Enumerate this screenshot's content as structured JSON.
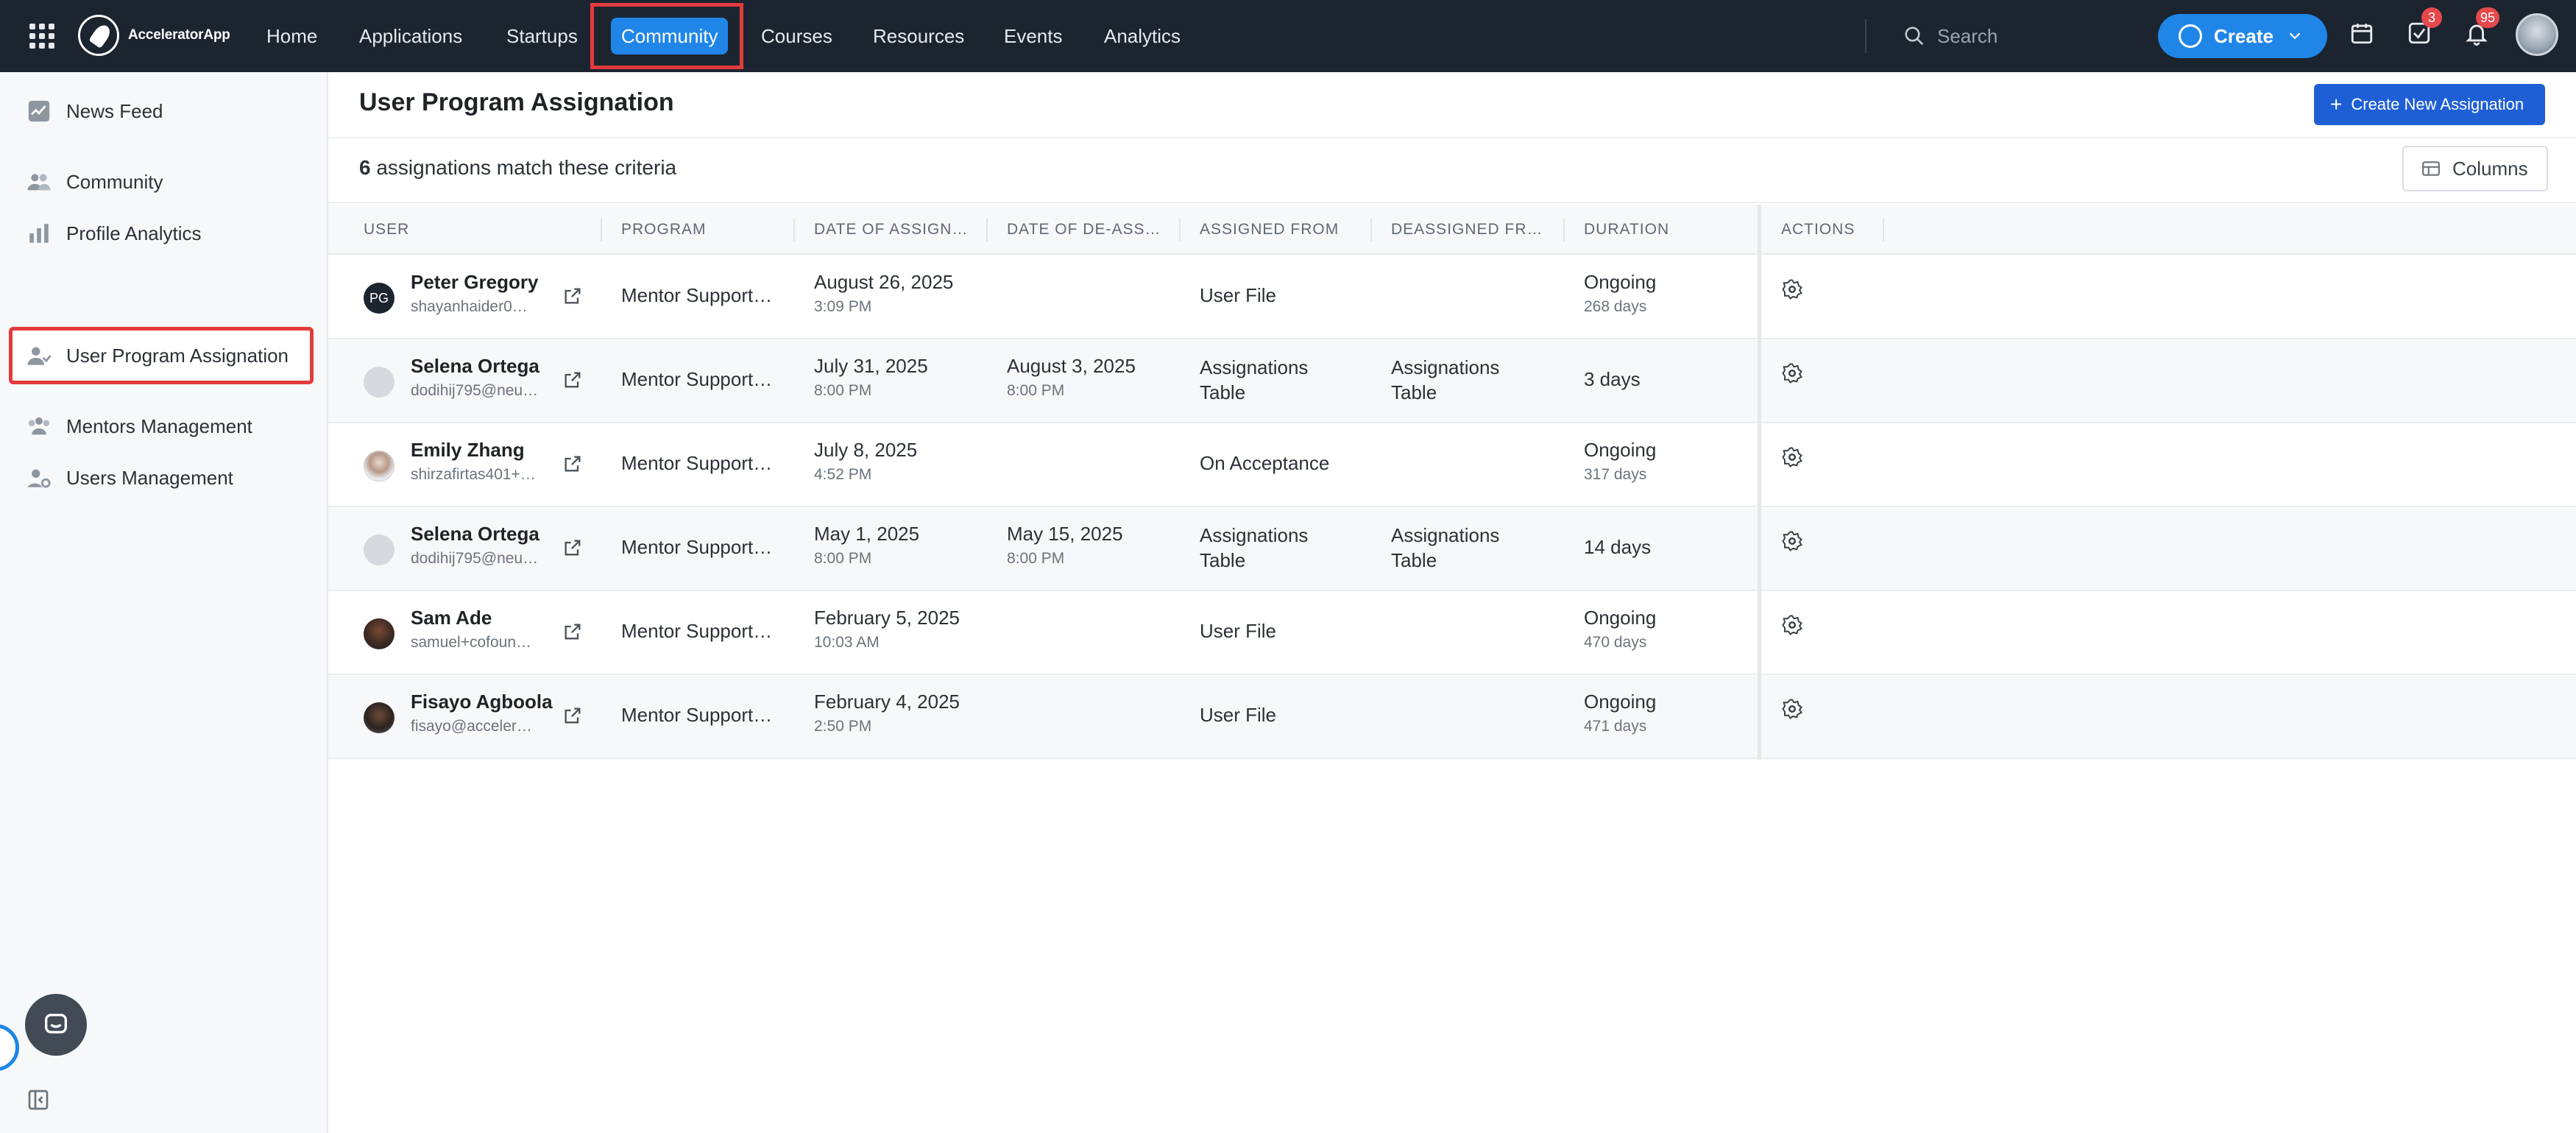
{
  "app": {
    "name": "AcceleratorApp"
  },
  "nav": {
    "items": [
      {
        "label": "Home"
      },
      {
        "label": "Applications"
      },
      {
        "label": "Startups"
      },
      {
        "label": "Community"
      },
      {
        "label": "Courses"
      },
      {
        "label": "Resources"
      },
      {
        "label": "Events"
      },
      {
        "label": "Analytics"
      }
    ],
    "active": "Community",
    "search_placeholder": "Search",
    "create_label": "Create",
    "tasks_badge": "3",
    "notifications_badge": "95"
  },
  "sidebar": {
    "items": [
      {
        "label": "News Feed",
        "icon": "chart-icon"
      },
      {
        "label": "Community",
        "icon": "people-icon"
      },
      {
        "label": "Profile Analytics",
        "icon": "bar-chart-icon"
      },
      {
        "label": "User Program Assignation",
        "icon": "user-assign-icon"
      },
      {
        "label": "Mentors Management",
        "icon": "group-icon"
      },
      {
        "label": "Users Management",
        "icon": "user-gear-icon"
      }
    ],
    "active": "User Program Assignation"
  },
  "page": {
    "title": "User Program Assignation",
    "create_button": "Create New Assignation",
    "count_number": "6",
    "count_text": "assignations match these criteria",
    "columns_button": "Columns"
  },
  "table": {
    "headers": [
      "USER",
      "PROGRAM",
      "DATE OF ASSIGN…",
      "DATE OF DE-ASS…",
      "ASSIGNED FROM",
      "DEASSIGNED FR…",
      "DURATION",
      "ACTIONS"
    ],
    "rows": [
      {
        "name": "Peter Gregory",
        "email": "shayanhaider0…",
        "initials": "PG",
        "program": "Mentor Support…",
        "assign_date": "August 26, 2025",
        "assign_time": "3:09 PM",
        "deassign_date": "",
        "deassign_time": "",
        "assigned_from_1": "User File",
        "assigned_from_2": "",
        "deassigned_from_1": "",
        "deassigned_from_2": "",
        "duration": "Ongoing",
        "duration_sub": "268 days"
      },
      {
        "name": "Selena Ortega",
        "email": "dodihij795@neu…",
        "initials": "",
        "program": "Mentor Support…",
        "assign_date": "July 31, 2025",
        "assign_time": "8:00 PM",
        "deassign_date": "August 3, 2025",
        "deassign_time": "8:00 PM",
        "assigned_from_1": "Assignations",
        "assigned_from_2": "Table",
        "deassigned_from_1": "Assignations",
        "deassigned_from_2": "Table",
        "duration": "3 days",
        "duration_sub": ""
      },
      {
        "name": "Emily Zhang",
        "email": "shirzafirtas401+…",
        "initials": "",
        "program": "Mentor Support…",
        "assign_date": "July 8, 2025",
        "assign_time": "4:52 PM",
        "deassign_date": "",
        "deassign_time": "",
        "assigned_from_1": "On Acceptance",
        "assigned_from_2": "",
        "deassigned_from_1": "",
        "deassigned_from_2": "",
        "duration": "Ongoing",
        "duration_sub": "317 days"
      },
      {
        "name": "Selena Ortega",
        "email": "dodihij795@neu…",
        "initials": "",
        "program": "Mentor Support…",
        "assign_date": "May 1, 2025",
        "assign_time": "8:00 PM",
        "deassign_date": "May 15, 2025",
        "deassign_time": "8:00 PM",
        "assigned_from_1": "Assignations",
        "assigned_from_2": "Table",
        "deassigned_from_1": "Assignations",
        "deassigned_from_2": "Table",
        "duration": "14 days",
        "duration_sub": ""
      },
      {
        "name": "Sam Ade",
        "email": "samuel+cofoun…",
        "initials": "",
        "program": "Mentor Support…",
        "assign_date": "February 5, 2025",
        "assign_time": "10:03 AM",
        "deassign_date": "",
        "deassign_time": "",
        "assigned_from_1": "User File",
        "assigned_from_2": "",
        "deassigned_from_1": "",
        "deassigned_from_2": "",
        "duration": "Ongoing",
        "duration_sub": "470 days"
      },
      {
        "name": "Fisayo Agboola",
        "email": "fisayo@acceler…",
        "initials": "",
        "program": "Mentor Support…",
        "assign_date": "February 4, 2025",
        "assign_time": "2:50 PM",
        "deassign_date": "",
        "deassign_time": "",
        "assigned_from_1": "User File",
        "assigned_from_2": "",
        "deassigned_from_1": "",
        "deassigned_from_2": "",
        "duration": "Ongoing",
        "duration_sub": "471 days"
      }
    ]
  },
  "colors": {
    "topbar": "#1c2430",
    "accent": "#1f86e8",
    "primary_button": "#1f5fd6",
    "highlight": "#e23b3b"
  }
}
